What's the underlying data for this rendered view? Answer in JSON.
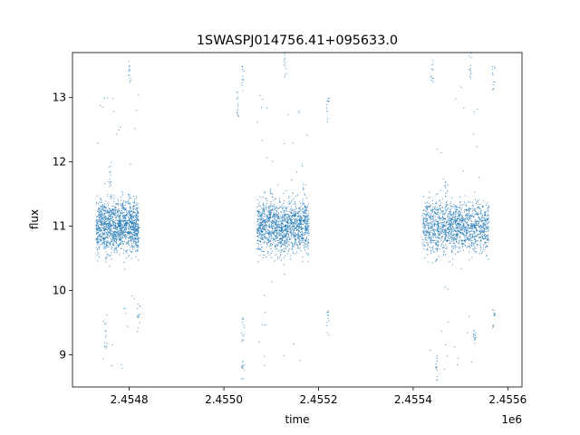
{
  "chart_data": {
    "type": "scatter",
    "title": "1SWASPJ014756.41+095633.0",
    "xlabel": "time",
    "ylabel": "flux",
    "x_offset_label": "1e6",
    "xlim": [
      2.45468,
      2.45563
    ],
    "ylim": [
      8.5,
      13.7
    ],
    "x_ticks": [
      {
        "value": 2.4548,
        "label": "2.4548"
      },
      {
        "value": 2.455,
        "label": "2.4550"
      },
      {
        "value": 2.4552,
        "label": "2.4552"
      },
      {
        "value": 2.4554,
        "label": "2.4554"
      },
      {
        "value": 2.4556,
        "label": "2.4556"
      }
    ],
    "y_ticks": [
      {
        "value": 9,
        "label": "9"
      },
      {
        "value": 10,
        "label": "10"
      },
      {
        "value": 11,
        "label": "11"
      },
      {
        "value": 12,
        "label": "12"
      },
      {
        "value": 13,
        "label": "13"
      }
    ],
    "grid": false,
    "marker_color": "#1f77b4",
    "series": [
      {
        "points_summary": "dense light-curve clusters centered near flux 11",
        "clusters": [
          {
            "x_range": [
              2.45473,
              2.45482
            ],
            "y_center": 11.0,
            "y_spread": 0.5
          },
          {
            "x_range": [
              2.45507,
              2.45518
            ],
            "y_center": 11.0,
            "y_spread": 0.5
          },
          {
            "x_range": [
              2.45542,
              2.45556
            ],
            "y_center": 11.0,
            "y_spread": 0.5
          }
        ],
        "sample_points": [
          {
            "x": 2.45474,
            "y": 11.1
          },
          {
            "x": 2.45475,
            "y": 10.6
          },
          {
            "x": 2.45476,
            "y": 11.8
          },
          {
            "x": 2.45478,
            "y": 10.9
          },
          {
            "x": 2.4548,
            "y": 11.3
          },
          {
            "x": 2.45482,
            "y": 10.8
          },
          {
            "x": 2.45475,
            "y": 9.3
          },
          {
            "x": 2.4548,
            "y": 13.4
          },
          {
            "x": 2.45482,
            "y": 9.6
          },
          {
            "x": 2.45503,
            "y": 12.9
          },
          {
            "x": 2.45504,
            "y": 13.3
          },
          {
            "x": 2.45504,
            "y": 9.4
          },
          {
            "x": 2.45504,
            "y": 8.8
          },
          {
            "x": 2.45508,
            "y": 11.0
          },
          {
            "x": 2.4551,
            "y": 11.4
          },
          {
            "x": 2.45512,
            "y": 10.7
          },
          {
            "x": 2.45514,
            "y": 11.2
          },
          {
            "x": 2.45516,
            "y": 10.9
          },
          {
            "x": 2.45517,
            "y": 11.5
          },
          {
            "x": 2.45513,
            "y": 13.5
          },
          {
            "x": 2.45522,
            "y": 12.8
          },
          {
            "x": 2.45522,
            "y": 9.5
          },
          {
            "x": 2.45543,
            "y": 11.1
          },
          {
            "x": 2.45545,
            "y": 10.6
          },
          {
            "x": 2.45547,
            "y": 11.5
          },
          {
            "x": 2.45549,
            "y": 10.9
          },
          {
            "x": 2.45551,
            "y": 11.2
          },
          {
            "x": 2.45553,
            "y": 10.8
          },
          {
            "x": 2.45555,
            "y": 11.0
          },
          {
            "x": 2.45544,
            "y": 13.4
          },
          {
            "x": 2.45552,
            "y": 13.5
          },
          {
            "x": 2.45557,
            "y": 13.3
          },
          {
            "x": 2.45557,
            "y": 9.6
          },
          {
            "x": 2.45545,
            "y": 8.8
          },
          {
            "x": 2.45553,
            "y": 9.2
          }
        ]
      }
    ]
  }
}
